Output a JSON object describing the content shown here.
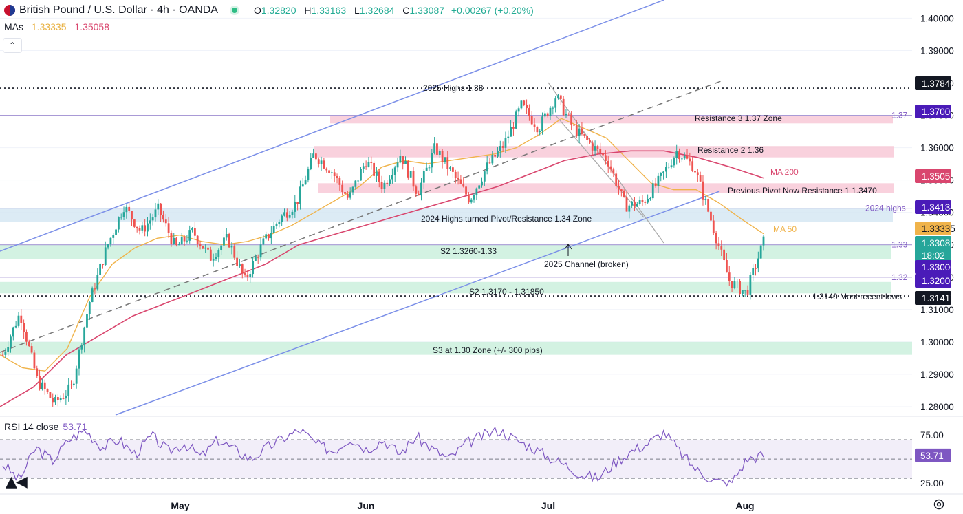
{
  "header": {
    "symbol_title": "British Pound / U.S. Dollar · 4h · OANDA",
    "ohlc": {
      "o_label": "O",
      "o": "1.32820",
      "h_label": "H",
      "h": "1.33163",
      "l_label": "L",
      "l": "1.32684",
      "c_label": "C",
      "c": "1.33087",
      "change": "+0.00267 (+0.20%)"
    },
    "mas_label": "MAs",
    "ma50_value": "1.33335",
    "ma200_value": "1.35058",
    "collapse_icon": "chevron-up-icon"
  },
  "rsi_header": {
    "label": "RSI 14 close",
    "value": "53.71"
  },
  "colors": {
    "ma50": "#f0b34a",
    "ma200": "#d9466e",
    "up": "#26a69a",
    "down": "#ef5350",
    "rsi": "#7e57c2",
    "channel": "#7b8fe8",
    "resistance": "#f8c6d4",
    "support": "#c8efdb",
    "pivot": "#d3e6f3"
  },
  "chart_data": {
    "type": "candlestick",
    "symbol": "British Pound / U.S. Dollar · 4h · OANDA",
    "y_axis_ticks": [
      "1.40000",
      "1.39000",
      "1.38000",
      "1.37000",
      "1.36000",
      "1.35000",
      "1.34000",
      "1.33000",
      "1.32000",
      "1.31000",
      "1.30000",
      "1.29000",
      "1.28000"
    ],
    "ylim": [
      1.2785,
      1.402
    ],
    "x_axis_ticks": [
      "May",
      "Jun",
      "Jul",
      "Aug"
    ],
    "price_path_close": [
      1.296,
      1.309,
      1.288,
      1.281,
      1.286,
      1.312,
      1.329,
      1.342,
      1.334,
      1.341,
      1.329,
      1.334,
      1.326,
      1.332,
      1.319,
      1.33,
      1.338,
      1.343,
      1.358,
      1.353,
      1.344,
      1.356,
      1.348,
      1.358,
      1.346,
      1.36,
      1.352,
      1.344,
      1.354,
      1.361,
      1.373,
      1.366,
      1.376,
      1.366,
      1.361,
      1.356,
      1.342,
      1.343,
      1.35,
      1.359,
      1.354,
      1.337,
      1.319,
      1.315,
      1.3309
    ],
    "ma50_path": [
      1.296,
      1.292,
      1.291,
      1.298,
      1.314,
      1.324,
      1.329,
      1.332,
      1.333,
      1.331,
      1.33,
      1.331,
      1.333,
      1.336,
      1.34,
      1.344,
      1.348,
      1.354,
      1.356,
      1.355,
      1.356,
      1.357,
      1.358,
      1.36,
      1.364,
      1.369,
      1.366,
      1.363,
      1.356,
      1.349,
      1.347,
      1.347,
      1.343,
      1.338,
      1.3334
    ],
    "ma200_path": [
      1.28,
      1.286,
      1.296,
      1.302,
      1.308,
      1.312,
      1.316,
      1.32,
      1.324,
      1.33,
      1.333,
      1.336,
      1.339,
      1.342,
      1.345,
      1.348,
      1.352,
      1.356,
      1.358,
      1.359,
      1.359,
      1.357,
      1.354,
      1.3506
    ],
    "price_labels": [
      {
        "value": "1.37840",
        "color": "#131722"
      },
      {
        "value": "1.37000",
        "color": "#4a1bb8"
      },
      {
        "value": "1.35058",
        "color": "#d9466e"
      },
      {
        "value": "1.34134",
        "color": "#4a1bb8"
      },
      {
        "value": "1.33335",
        "color": "#f0b34a"
      },
      {
        "value": "1.33087",
        "color": "#26a69a"
      },
      {
        "value": "1.33000",
        "color": "#4a1bb8"
      },
      {
        "value": "1.32000",
        "color": "#4a1bb8"
      },
      {
        "value": "1.31417",
        "color": "#131722"
      }
    ],
    "countdown": "18:02",
    "levels": [
      {
        "price": 1.3784,
        "style": "dotted",
        "label": "2025 Highs 1.38"
      },
      {
        "price": 1.37,
        "style": "solid",
        "label": "1.37"
      },
      {
        "price": 1.3413,
        "style": "solid",
        "label": "2024 highs"
      },
      {
        "price": 1.33,
        "style": "solid",
        "label": "1.33"
      },
      {
        "price": 1.32,
        "style": "solid",
        "label": "1.32"
      },
      {
        "price": 1.3142,
        "style": "dotted",
        "label": "1.3140 Most recent lows"
      }
    ],
    "zones": [
      {
        "type": "resistance",
        "from": 1.3675,
        "to": 1.37,
        "label": "Resistance 3 1.37 Zone"
      },
      {
        "type": "resistance",
        "from": 1.357,
        "to": 1.3605,
        "label": "Resistance 2 1.36"
      },
      {
        "type": "resistance",
        "from": 1.346,
        "to": 1.349,
        "label": "Previous Pivot Now Resistance 1 1.3470"
      },
      {
        "type": "pivot",
        "from": 1.337,
        "to": 1.3413,
        "label": "2024 Highs turned Pivot/Resistance 1.34 Zone"
      },
      {
        "type": "support",
        "from": 1.3255,
        "to": 1.33,
        "label": "S2 1.3260-1.33"
      },
      {
        "type": "support",
        "from": 1.315,
        "to": 1.3185,
        "label": "S2 1.3170 - 1.31850"
      },
      {
        "type": "support",
        "from": 1.296,
        "to": 1.3,
        "label": "S3 at 1.30 Zone (+/- 300 pips)"
      }
    ],
    "annotations": {
      "ma200": "MA 200",
      "ma50": "MA 50",
      "channel": "2025 Channel (broken)"
    },
    "rsi": {
      "label": "RSI 14 close",
      "value": 53.71,
      "value_text": "53.71",
      "levels": [
        70,
        50,
        30
      ],
      "ticks": [
        "75.00",
        "25.00"
      ],
      "path": [
        45,
        28,
        62,
        48,
        70,
        80,
        62,
        70,
        55,
        74,
        58,
        66,
        52,
        70,
        60,
        50,
        62,
        72,
        80,
        65,
        58,
        72,
        60,
        70,
        55,
        73,
        60,
        50,
        66,
        74,
        80,
        70,
        62,
        52,
        44,
        34,
        30,
        46,
        58,
        66,
        78,
        56,
        38,
        28,
        24,
        50,
        54
      ]
    }
  }
}
